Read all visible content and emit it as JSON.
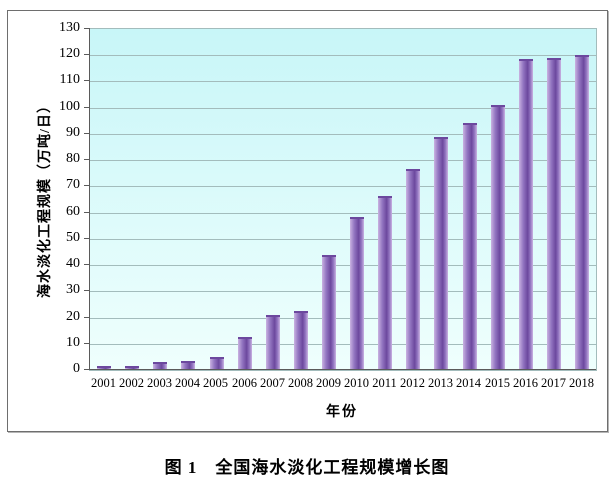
{
  "chart_data": {
    "type": "bar",
    "title": "图 1　全国海水淡化工程规模增长图",
    "xlabel": "年份",
    "ylabel": "海水淡化工程规模（万吨/日）",
    "categories": [
      "2001",
      "2002",
      "2003",
      "2004",
      "2005",
      "2006",
      "2007",
      "2008",
      "2009",
      "2010",
      "2011",
      "2012",
      "2013",
      "2014",
      "2015",
      "2016",
      "2017",
      "2018"
    ],
    "values": [
      1.5,
      1.5,
      3,
      3.5,
      5,
      12.5,
      21,
      22.5,
      44,
      58.5,
      66.5,
      76.5,
      89,
      94,
      101,
      118.5,
      119,
      120
    ],
    "ylim": [
      0,
      130
    ],
    "ytick_step": 10,
    "grid": true,
    "legend": "none",
    "colors": {
      "plot_bg_top": "#c8f6f8",
      "plot_bg_bottom": "#effffd",
      "gridline": "#a3bcbc",
      "axis": "#5a5a5a",
      "bar_edge_light": "#cab3e2",
      "bar_mid": "#9376c1",
      "bar_dark": "#6c489e",
      "frame_border": "#6e6e6e",
      "text": "#000000"
    }
  }
}
